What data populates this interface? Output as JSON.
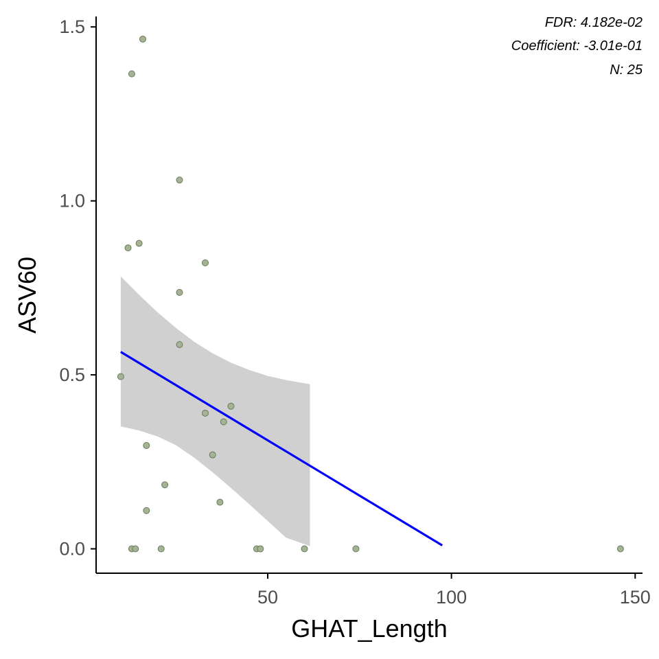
{
  "chart_data": {
    "type": "scatter",
    "xlabel": "GHAT_Length",
    "ylabel": "ASV60",
    "xlim": [
      3.3,
      152.0
    ],
    "ylim": [
      -0.07,
      1.53
    ],
    "x_ticks": [
      50,
      100,
      150
    ],
    "y_ticks": [
      0.0,
      0.5,
      1.0,
      1.5
    ],
    "x_tick_labels": [
      "50",
      "100",
      "150"
    ],
    "y_tick_labels": [
      "0.0",
      "0.5",
      "1.0",
      "1.5"
    ],
    "grid": false,
    "annotations": [
      "FDR: 4.182e-02",
      "Coefficient: -3.01e-01",
      "N: 25"
    ],
    "point_color": "#a3b393",
    "point_stroke": "#6b7a5d",
    "line_color": "#0000ff",
    "band_color": "#d0d0d0",
    "points": [
      {
        "x": 10,
        "y": 0.495
      },
      {
        "x": 12,
        "y": 0.865
      },
      {
        "x": 13,
        "y": 1.365
      },
      {
        "x": 13,
        "y": 0.0
      },
      {
        "x": 14,
        "y": 0.0
      },
      {
        "x": 15,
        "y": 0.878
      },
      {
        "x": 16,
        "y": 1.465
      },
      {
        "x": 17,
        "y": 0.11
      },
      {
        "x": 17,
        "y": 0.297
      },
      {
        "x": 21,
        "y": 0.0
      },
      {
        "x": 22,
        "y": 0.184
      },
      {
        "x": 26,
        "y": 1.06
      },
      {
        "x": 26,
        "y": 0.737
      },
      {
        "x": 26,
        "y": 0.587
      },
      {
        "x": 33,
        "y": 0.822
      },
      {
        "x": 33,
        "y": 0.39
      },
      {
        "x": 35,
        "y": 0.27
      },
      {
        "x": 37,
        "y": 0.134
      },
      {
        "x": 38,
        "y": 0.365
      },
      {
        "x": 40,
        "y": 0.41
      },
      {
        "x": 47,
        "y": 0.0
      },
      {
        "x": 48,
        "y": 0.0
      },
      {
        "x": 60,
        "y": 0.0
      },
      {
        "x": 74,
        "y": 0.0
      },
      {
        "x": 146,
        "y": 0.0
      }
    ],
    "fit_line": {
      "x": [
        10,
        97.5
      ],
      "y": [
        0.566,
        0.01
      ]
    },
    "confidence_band": {
      "x": [
        10,
        15,
        20,
        25,
        30,
        35,
        40,
        45,
        50,
        55,
        61.5
      ],
      "upper": [
        0.783,
        0.73,
        0.68,
        0.635,
        0.595,
        0.562,
        0.535,
        0.514,
        0.497,
        0.485,
        0.473
      ],
      "lower": [
        0.352,
        0.34,
        0.323,
        0.298,
        0.262,
        0.22,
        0.175,
        0.128,
        0.08,
        0.032,
        0.008
      ]
    }
  }
}
